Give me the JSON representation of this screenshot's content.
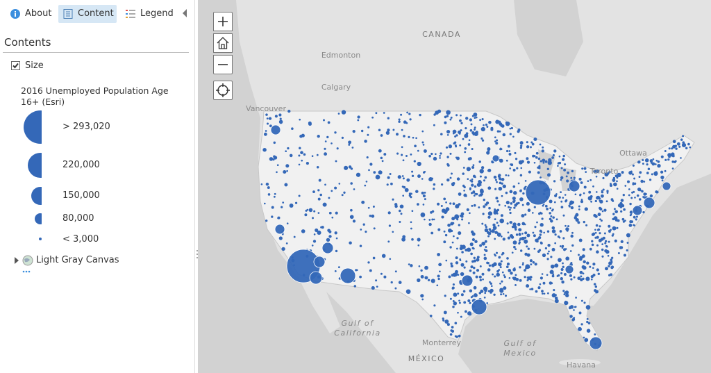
{
  "tabs": {
    "about": "About",
    "content": "Content",
    "legend": "Legend"
  },
  "panel": {
    "title": "Contents",
    "layer": "Size",
    "legend_title": "2016 Unemployed Population Age 16+ (Esri)",
    "legend_items": [
      "> 293,020",
      "220,000",
      "150,000",
      "80,000",
      "< 3,000"
    ],
    "basemap": "Light Gray Canvas"
  },
  "map": {
    "labels": {
      "canada": "CANADA",
      "edmonton": "Edmonton",
      "calgary": "Calgary",
      "vancouver": "Vancouver",
      "ottawa": "Ottawa",
      "toronto": "Toronto",
      "gulf_of_california": [
        "Gulf of",
        "California"
      ],
      "monterrey": "Monterrey",
      "mexico": "MÉXICO",
      "gulf_of_mexico": [
        "Gulf of",
        "Mexico"
      ],
      "havana": "Havana"
    }
  }
}
